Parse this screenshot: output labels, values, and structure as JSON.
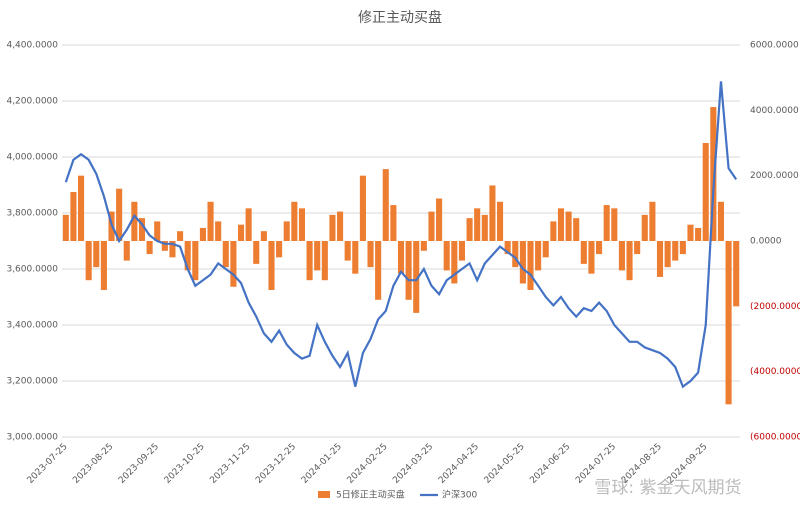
{
  "chart_data": {
    "type": "bar-line",
    "title": "修正主动买盘",
    "categories": [
      "2023-07-25",
      null,
      null,
      null,
      null,
      null,
      "2023-08-25",
      null,
      null,
      null,
      null,
      null,
      "2023-09-25",
      null,
      null,
      null,
      null,
      null,
      "2023-10-25",
      null,
      null,
      null,
      null,
      null,
      "2023-11-25",
      null,
      null,
      null,
      null,
      null,
      "2023-12-25",
      null,
      null,
      null,
      null,
      null,
      "2024-01-25",
      null,
      null,
      null,
      null,
      null,
      "2024-02-25",
      null,
      null,
      null,
      null,
      null,
      "2024-03-25",
      null,
      null,
      null,
      null,
      null,
      "2024-04-25",
      null,
      null,
      null,
      null,
      null,
      "2024-05-25",
      null,
      null,
      null,
      null,
      null,
      "2024-06-25",
      null,
      null,
      null,
      null,
      null,
      "2024-07-25",
      null,
      null,
      null,
      null,
      null,
      "2024-08-25",
      null,
      null,
      null,
      null,
      null,
      "2024-09-25",
      null,
      null,
      null,
      null
    ],
    "series": [
      {
        "name": "5日修正主动买盘",
        "type": "bar",
        "axis": "y2",
        "color": "#ed7d31",
        "values": [
          800,
          1500,
          2000,
          -1200,
          -800,
          -1500,
          900,
          1600,
          -600,
          1200,
          700,
          -400,
          600,
          -300,
          -500,
          300,
          -900,
          -1200,
          400,
          1200,
          600,
          -800,
          -1400,
          500,
          1000,
          -700,
          300,
          -1500,
          -500,
          600,
          1200,
          1000,
          -1200,
          -900,
          -1200,
          800,
          900,
          -600,
          -1000,
          2000,
          -800,
          -1800,
          2200,
          1100,
          -1000,
          -1800,
          -2200,
          -300,
          900,
          1300,
          -900,
          -1300,
          -600,
          700,
          1000,
          800,
          1700,
          1200,
          -400,
          -800,
          -1300,
          -1500,
          -900,
          -500,
          600,
          1000,
          900,
          700,
          -700,
          -1000,
          -400,
          1100,
          1000,
          -900,
          -1200,
          -400,
          800,
          1200,
          -1100,
          -800,
          -600,
          -400,
          500,
          400,
          3000,
          4100,
          1200,
          -5000,
          -2000
        ]
      },
      {
        "name": "沪深300",
        "type": "line",
        "axis": "y",
        "color": "#4472c4",
        "values": [
          3910,
          3990,
          4010,
          3990,
          3940,
          3860,
          3760,
          3700,
          3740,
          3790,
          3760,
          3720,
          3700,
          3690,
          3690,
          3680,
          3600,
          3540,
          3560,
          3580,
          3620,
          3600,
          3580,
          3550,
          3480,
          3430,
          3370,
          3340,
          3380,
          3330,
          3300,
          3280,
          3290,
          3400,
          3340,
          3290,
          3250,
          3300,
          3180,
          3300,
          3350,
          3420,
          3450,
          3540,
          3590,
          3560,
          3560,
          3600,
          3540,
          3510,
          3560,
          3580,
          3600,
          3620,
          3560,
          3620,
          3650,
          3680,
          3660,
          3640,
          3600,
          3580,
          3540,
          3500,
          3470,
          3500,
          3460,
          3430,
          3460,
          3450,
          3480,
          3450,
          3400,
          3370,
          3340,
          3340,
          3320,
          3310,
          3300,
          3280,
          3250,
          3180,
          3200,
          3230,
          3400,
          3880,
          4270,
          3960,
          3920
        ]
      }
    ],
    "ylim": [
      3000,
      4400
    ],
    "yticks": [
      {
        "value": 3000,
        "label": "3,000.0000"
      },
      {
        "value": 3200,
        "label": "3,200.0000"
      },
      {
        "value": 3400,
        "label": "3,400.0000"
      },
      {
        "value": 3600,
        "label": "3,600.0000"
      },
      {
        "value": 3800,
        "label": "3,800.0000"
      },
      {
        "value": 4000,
        "label": "4,000.0000"
      },
      {
        "value": 4200,
        "label": "4,200.0000"
      },
      {
        "value": 4400,
        "label": "4,400.0000"
      }
    ],
    "y2lim": [
      -6000,
      6000
    ],
    "y2ticks": [
      {
        "value": -6000,
        "label": "(6000.0000)"
      },
      {
        "value": -4000,
        "label": "(4000.0000)"
      },
      {
        "value": -2000,
        "label": "(2000.0000)"
      },
      {
        "value": 0,
        "label": "0.0000"
      },
      {
        "value": 2000,
        "label": "2000.0000"
      },
      {
        "value": 4000,
        "label": "4000.0000"
      },
      {
        "value": 6000,
        "label": "6000.0000"
      }
    ],
    "grid": true,
    "legend": "bottom",
    "watermark": "雪球: 紫金天风期货"
  }
}
